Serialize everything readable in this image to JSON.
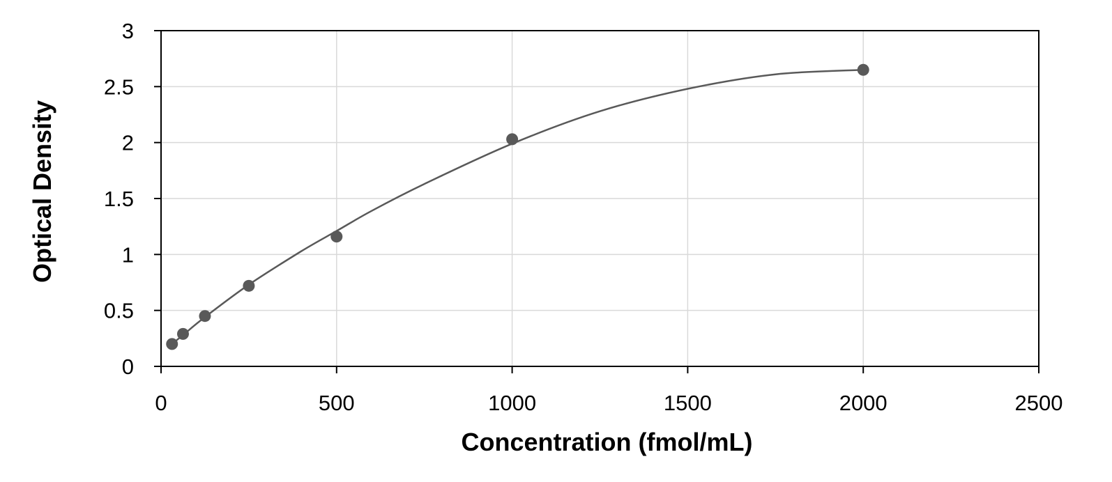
{
  "chart_data": {
    "type": "scatter",
    "title": "",
    "xlabel": "Concentration (fmol/mL)",
    "ylabel": "Optical Density",
    "xlim": [
      0,
      2500
    ],
    "ylim": [
      0,
      3
    ],
    "x_ticks": [
      0,
      500,
      1000,
      1500,
      2000,
      2500
    ],
    "y_ticks": [
      0,
      0.5,
      1,
      1.5,
      2,
      2.5,
      3
    ],
    "grid": true,
    "legend": "none",
    "series": [
      {
        "x": [
          31.25,
          62.5,
          125,
          250,
          500,
          1000,
          2000
        ],
        "y": [
          0.2,
          0.29,
          0.45,
          0.72,
          1.16,
          2.03,
          2.65
        ]
      }
    ],
    "fit": {
      "type": "smooth curve",
      "x": [
        31.25,
        62.5,
        125,
        250,
        400,
        500,
        600,
        750,
        1000,
        1250,
        1500,
        1750,
        2000
      ],
      "y": [
        0.2,
        0.28,
        0.44,
        0.73,
        1.03,
        1.21,
        1.39,
        1.63,
        1.99,
        2.28,
        2.48,
        2.61,
        2.65
      ]
    },
    "colors": {
      "marker": "#595959",
      "line": "#595959",
      "grid": "#d9d9d9",
      "axis": "#000000"
    }
  }
}
